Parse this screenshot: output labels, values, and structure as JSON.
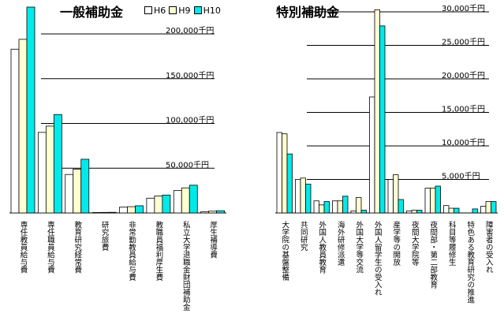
{
  "colors": {
    "H6": "#ffffff",
    "H9": "#ffffd0",
    "H10": "#00eaea",
    "outline": "#000000"
  },
  "legend": [
    {
      "name": "H6",
      "color": "#ffffff"
    },
    {
      "name": "H9",
      "color": "#ffffd0"
    },
    {
      "name": "H10",
      "color": "#00eaea"
    }
  ],
  "chart_data": [
    {
      "type": "bar",
      "title": "一般補助金",
      "unit": "千円",
      "ylim": [
        0,
        230000
      ],
      "yticks": [
        50000,
        100000,
        150000,
        200000
      ],
      "ytick_labels": [
        "50,000千円",
        "100,000千円",
        "150,000千円",
        "200,000千円"
      ],
      "categories": [
        "専任教員給与費",
        "専任職員給与費",
        "教育研究経常費",
        "研究旅費",
        "非常勤教員給与費",
        "教職員福利厚生費",
        "私立大学退職金財団補助金",
        "厚生補導費"
      ],
      "series": [
        {
          "name": "H6",
          "values": [
            183000,
            90000,
            43000,
            500,
            6500,
            16500,
            25000,
            1500
          ]
        },
        {
          "name": "H9",
          "values": [
            194000,
            97000,
            49000,
            600,
            7000,
            19000,
            28000,
            2000
          ]
        },
        {
          "name": "H10",
          "values": [
            230000,
            110000,
            60000,
            700,
            8000,
            20000,
            31000,
            2500
          ]
        }
      ]
    },
    {
      "type": "bar",
      "title": "特別補助金",
      "unit": "千円",
      "ylim": [
        0,
        30000
      ],
      "yticks": [
        5000,
        10000,
        15000,
        20000,
        25000,
        30000
      ],
      "ytick_labels": [
        "5,000千円",
        "10,000千円",
        "15,000千円",
        "20,000千円",
        "25,000千円",
        "30,000千円"
      ],
      "categories": [
        "大学院の基盤整備",
        "共同研究",
        "外国人教員教育",
        "海外研修派遣",
        "外国大学等交流",
        "外国人留学生の受入れ",
        "産学等の開放",
        "夜間大学院等",
        "夜間部・第二部教育",
        "科目等履修生",
        "特色ある教育研究の推進",
        "障害者の受入れ"
      ],
      "series": [
        {
          "name": "H6",
          "values": [
            12000,
            5000,
            1800,
            1800,
            300,
            17300,
            5000,
            300,
            3700,
            1100,
            0,
            1000
          ]
        },
        {
          "name": "H9",
          "values": [
            11800,
            5200,
            1200,
            1800,
            2300,
            30300,
            5700,
            400,
            3700,
            700,
            0,
            1700
          ]
        },
        {
          "name": "H10",
          "values": [
            8800,
            4300,
            1700,
            2500,
            400,
            27900,
            2000,
            400,
            4000,
            700,
            600,
            1700
          ]
        }
      ]
    }
  ]
}
